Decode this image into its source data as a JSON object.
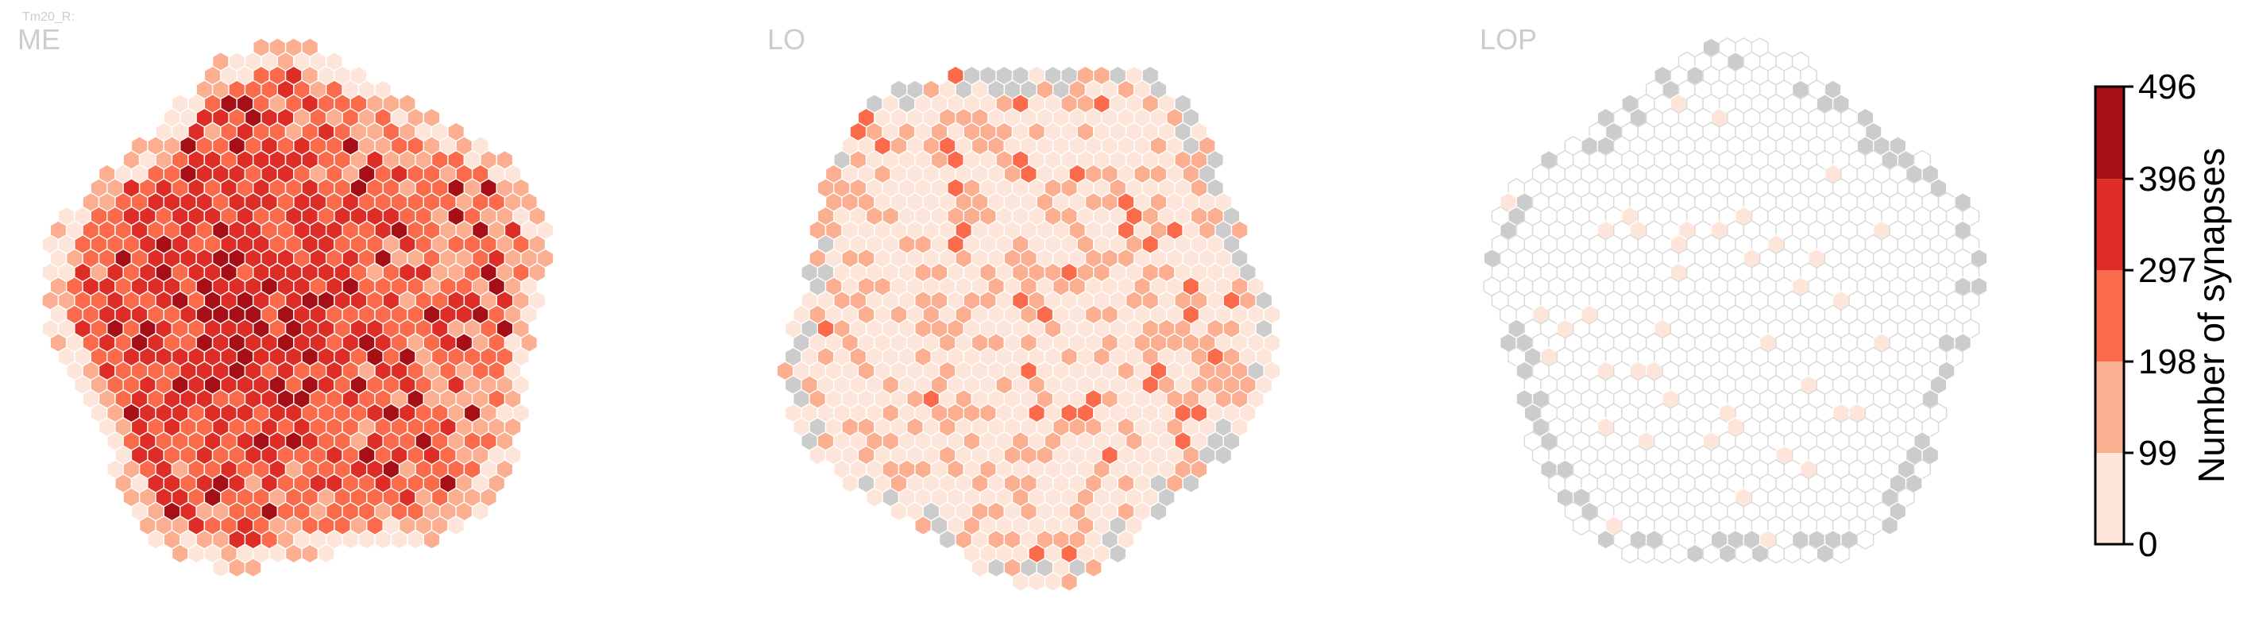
{
  "figure": {
    "cell_label": "Tm20_R:",
    "background": "#ffffff",
    "hex_stroke": "#ffffff",
    "hex_stroke_empty": "#d9d9d9",
    "missing_color": "#cccccc"
  },
  "chart_data": [
    {
      "type": "heatmap",
      "title": "ME",
      "grid": "hexagonal columns",
      "value_summary": {
        "min": 0,
        "max": 496,
        "typical": [
          198,
          396
        ],
        "max_region": "center-left"
      },
      "missing_columns_border": false
    },
    {
      "type": "heatmap",
      "title": "LO",
      "grid": "hexagonal columns",
      "value_summary": {
        "min": 0,
        "max": 297,
        "typical": [
          0,
          198
        ]
      },
      "missing_columns_border": true
    },
    {
      "type": "heatmap",
      "title": "LOP",
      "grid": "hexagonal columns",
      "value_summary": {
        "min": 0,
        "max": 99,
        "typical": [
          0,
          0
        ]
      },
      "missing_columns_border": true
    }
  ],
  "colorbar": {
    "label": "Number of synapses",
    "ticks": [
      "0",
      "99",
      "198",
      "297",
      "396",
      "496"
    ],
    "tick_values": [
      0,
      99,
      198,
      297,
      396,
      496
    ],
    "bins": [
      {
        "range": [
          0,
          99
        ],
        "color": "#fee5d9"
      },
      {
        "range": [
          99,
          198
        ],
        "color": "#fcae91"
      },
      {
        "range": [
          198,
          297
        ],
        "color": "#fb6a4a"
      },
      {
        "range": [
          297,
          396
        ],
        "color": "#de2d26"
      },
      {
        "range": [
          396,
          496
        ],
        "color": "#a50f15"
      }
    ]
  }
}
